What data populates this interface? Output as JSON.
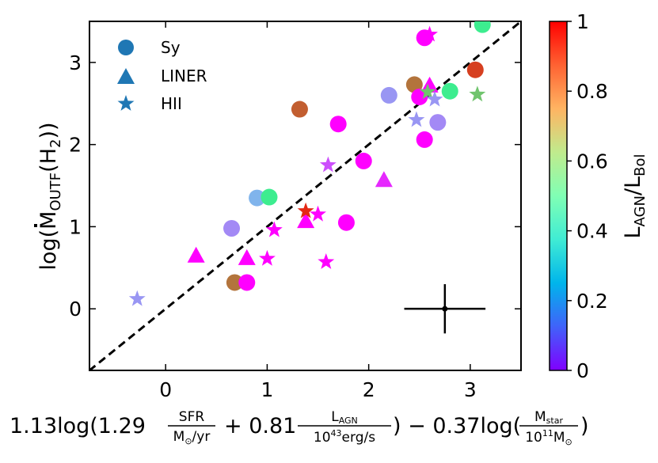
{
  "chart_data": {
    "type": "scatter",
    "xlabel_parts": {
      "c1": "1.13log(1.29",
      "frac1_num": "SFR",
      "frac1_den_pre": "M",
      "frac1_den_post": "/yr",
      "op1": "+ 0.81",
      "frac2_num_main": "L",
      "frac2_num_sub": "AGN",
      "frac2_den": "10",
      "frac2_den_sup": "43",
      "frac2_den_post": "erg/s",
      "op2": ") − 0.37log(",
      "frac3_num_main": "M",
      "frac3_num_sub": "star",
      "frac3_den": "10",
      "frac3_den_sup": "11",
      "frac3_den_post": "M",
      "close": ")",
      "sun_symbol": "⊙"
    },
    "ylabel_parts": {
      "pre": "log(",
      "main": "M",
      "sub": "OUTF",
      "mid": "(H",
      "sub2": "2",
      "post": "))"
    },
    "colorbar_label_parts": {
      "main": "L",
      "sub1": "AGN",
      "sep": "/L",
      "sub2": "Bol"
    },
    "xlim": [
      -0.75,
      3.5
    ],
    "ylim": [
      -0.75,
      3.5
    ],
    "x_ticks": [
      0,
      1,
      2,
      3
    ],
    "y_ticks": [
      0,
      1,
      2,
      3
    ],
    "x_tick_labels": [
      "0",
      "1",
      "2",
      "3"
    ],
    "y_tick_labels": [
      "0",
      "1",
      "2",
      "3"
    ],
    "colorbar": {
      "colormap": "rainbow",
      "range": [
        0,
        1
      ],
      "ticks": [
        0,
        0.2,
        0.4,
        0.6,
        0.8,
        1
      ],
      "tick_labels": [
        "0",
        "0.2",
        "0.4",
        "0.6",
        "0.8",
        "1"
      ]
    },
    "reference_line": {
      "style": "dashed",
      "slope": 1,
      "intercept": 0
    },
    "error_bar": {
      "x": 2.75,
      "y": 0,
      "xerr": 0.4,
      "yerr": 0.3
    },
    "legend": {
      "position": "top-left",
      "entries": [
        {
          "label": "Sy",
          "marker": "circle"
        },
        {
          "label": "LINER",
          "marker": "triangle"
        },
        {
          "label": "HII",
          "marker": "star"
        }
      ],
      "color": "#1f77b4"
    },
    "series": [
      {
        "name": "Sy",
        "marker": "circle",
        "points": [
          {
            "x": 0.65,
            "y": 0.98,
            "c": 0.18
          },
          {
            "x": 0.68,
            "y": 0.32,
            "c": 0.85
          },
          {
            "x": 0.8,
            "y": 0.32,
            "c": 0.0
          },
          {
            "x": 0.9,
            "y": 1.35,
            "c": 0.25
          },
          {
            "x": 1.02,
            "y": 1.36,
            "c": 0.62
          },
          {
            "x": 1.32,
            "y": 2.43,
            "c": 0.88
          },
          {
            "x": 1.7,
            "y": 2.25,
            "c": 0.0
          },
          {
            "x": 1.78,
            "y": 1.05,
            "c": 0.0
          },
          {
            "x": 1.95,
            "y": 1.8,
            "c": 0.0
          },
          {
            "x": 2.2,
            "y": 2.6,
            "c": 0.2
          },
          {
            "x": 2.45,
            "y": 2.73,
            "c": 0.85
          },
          {
            "x": 2.5,
            "y": 2.58,
            "c": 0.0
          },
          {
            "x": 2.55,
            "y": 3.3,
            "c": 0.0
          },
          {
            "x": 2.55,
            "y": 2.06,
            "c": 0.0
          },
          {
            "x": 2.68,
            "y": 2.27,
            "c": 0.18
          },
          {
            "x": 2.8,
            "y": 2.65,
            "c": 0.62
          },
          {
            "x": 3.05,
            "y": 2.91,
            "c": 0.92
          },
          {
            "x": 3.12,
            "y": 3.46,
            "c": 0.62
          }
        ]
      },
      {
        "name": "LINER",
        "marker": "triangle",
        "points": [
          {
            "x": 0.3,
            "y": 0.65,
            "c": 0.0
          },
          {
            "x": 0.8,
            "y": 0.62,
            "c": 0.0
          },
          {
            "x": 1.38,
            "y": 1.07,
            "c": 0.0
          },
          {
            "x": 2.15,
            "y": 1.57,
            "c": 0.05
          },
          {
            "x": 2.6,
            "y": 2.72,
            "c": 0.0
          }
        ]
      },
      {
        "name": "HII",
        "marker": "star",
        "points": [
          {
            "x": -0.28,
            "y": 0.12,
            "c": 0.2
          },
          {
            "x": 1.0,
            "y": 0.61,
            "c": 0.0
          },
          {
            "x": 1.07,
            "y": 0.96,
            "c": 0.0
          },
          {
            "x": 1.38,
            "y": 1.19,
            "c": 0.95
          },
          {
            "x": 1.5,
            "y": 1.15,
            "c": 0.0
          },
          {
            "x": 1.58,
            "y": 0.57,
            "c": 0.0
          },
          {
            "x": 1.6,
            "y": 1.75,
            "c": 0.1
          },
          {
            "x": 2.47,
            "y": 2.3,
            "c": 0.2
          },
          {
            "x": 2.58,
            "y": 2.64,
            "c": 0.72
          },
          {
            "x": 2.6,
            "y": 3.34,
            "c": 0.0
          },
          {
            "x": 2.65,
            "y": 2.55,
            "c": 0.2
          },
          {
            "x": 3.07,
            "y": 2.61,
            "c": 0.72
          }
        ]
      }
    ]
  }
}
